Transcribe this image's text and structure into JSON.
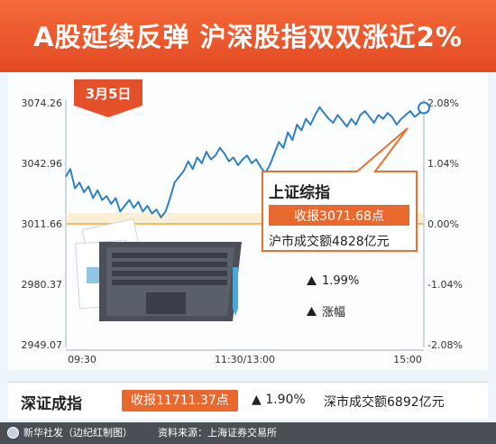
{
  "headline": "A股延续反弹  沪深股指双双涨近2%",
  "date_tab": "3月5日",
  "callout": {
    "title": "上证综指",
    "close": "收报3071.68点",
    "turnover": "沪市成交额4828亿元"
  },
  "legend": {
    "change_value": "1.99%",
    "change_label": "涨幅"
  },
  "shenzhen": {
    "name": "深证成指",
    "close": "收报11711.37点",
    "change": "▲ 1.90%",
    "turnover": "深市成交额6892亿元"
  },
  "credits": {
    "agency": "新华社发（边纪红制图）",
    "source": "资料来源：上海证券交易所"
  },
  "colors": {
    "banner": "#e8532a",
    "line": "#2f80c0",
    "zero_line": "#e8b23c",
    "accent": "#e8682e"
  },
  "chart_data": {
    "type": "line",
    "title": "上证综指",
    "ylim": [
      2949.07,
      3074.26
    ],
    "y_ticks": [
      "3074.26",
      "3042.96",
      "3011.66",
      "2980.37",
      "2949.07"
    ],
    "y_tick_values": [
      3074.26,
      3042.96,
      3011.66,
      2980.37,
      2949.07
    ],
    "pct_ticks": [
      "2.08%",
      "1.04%",
      "0.00%",
      "-1.04%",
      "-2.08%"
    ],
    "x_ticks": [
      "09:30",
      "11:30/13:00",
      "15:00"
    ],
    "baseline": 3011.66,
    "grid": false,
    "series": [
      {
        "values": [
          3036,
          3040,
          3030,
          3033,
          3028,
          3031,
          3025,
          3029,
          3024,
          3026,
          3022,
          3025,
          3018,
          3021,
          3024,
          3020,
          3023,
          3018,
          3021,
          3017,
          3019,
          3015,
          3018,
          3025,
          3033,
          3036,
          3039,
          3044,
          3040,
          3046,
          3043,
          3049,
          3045,
          3047,
          3051,
          3048,
          3044,
          3046,
          3042,
          3045,
          3047,
          3043,
          3045,
          3041,
          3038,
          3042,
          3048,
          3054,
          3051,
          3059,
          3055,
          3063,
          3060,
          3066,
          3063,
          3068,
          3072,
          3069,
          3066,
          3064,
          3068,
          3065,
          3062,
          3066,
          3063,
          3068,
          3070,
          3067,
          3064,
          3068,
          3066,
          3069,
          3067,
          3063,
          3066,
          3068,
          3070,
          3067,
          3069,
          3071.68
        ]
      }
    ]
  }
}
